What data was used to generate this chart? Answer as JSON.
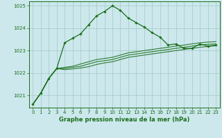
{
  "title": "Graphe pression niveau de la mer (hPa)",
  "background_color": "#cce8ec",
  "grid_color": "#aacccc",
  "line_color": "#1a6e1a",
  "xlabel": "Graphe pression niveau de la mer (hPa)",
  "ylim": [
    1020.45,
    1025.2
  ],
  "xlim": [
    -0.5,
    23.5
  ],
  "yticks": [
    1021,
    1022,
    1023,
    1024,
    1025
  ],
  "xticks": [
    0,
    1,
    2,
    3,
    4,
    5,
    6,
    7,
    8,
    9,
    10,
    11,
    12,
    13,
    14,
    15,
    16,
    17,
    18,
    19,
    20,
    21,
    22,
    23
  ],
  "series": [
    [
      1020.6,
      1021.1,
      1021.75,
      1022.2,
      1023.35,
      1023.55,
      1023.75,
      1024.15,
      1024.55,
      1024.75,
      1025.0,
      1024.8,
      1024.45,
      1024.25,
      1024.05,
      1023.8,
      1023.6,
      1023.25,
      1023.3,
      1023.1,
      1023.1,
      1023.3,
      1023.2,
      1023.25
    ],
    [
      1020.6,
      1021.1,
      1021.75,
      1022.2,
      1022.25,
      1022.3,
      1022.4,
      1022.5,
      1022.6,
      1022.65,
      1022.7,
      1022.8,
      1022.9,
      1022.95,
      1023.0,
      1023.05,
      1023.1,
      1023.15,
      1023.2,
      1023.25,
      1023.3,
      1023.35,
      1023.38,
      1023.4
    ],
    [
      1020.6,
      1021.1,
      1021.75,
      1022.2,
      1022.2,
      1022.25,
      1022.3,
      1022.4,
      1022.5,
      1022.55,
      1022.6,
      1022.7,
      1022.8,
      1022.85,
      1022.9,
      1022.95,
      1023.0,
      1023.05,
      1023.1,
      1023.15,
      1023.2,
      1023.25,
      1023.28,
      1023.3
    ],
    [
      1020.6,
      1021.1,
      1021.75,
      1022.2,
      1022.15,
      1022.18,
      1022.22,
      1022.28,
      1022.38,
      1022.45,
      1022.5,
      1022.6,
      1022.7,
      1022.75,
      1022.8,
      1022.85,
      1022.9,
      1022.95,
      1023.0,
      1023.05,
      1023.1,
      1023.15,
      1023.18,
      1023.22
    ]
  ]
}
